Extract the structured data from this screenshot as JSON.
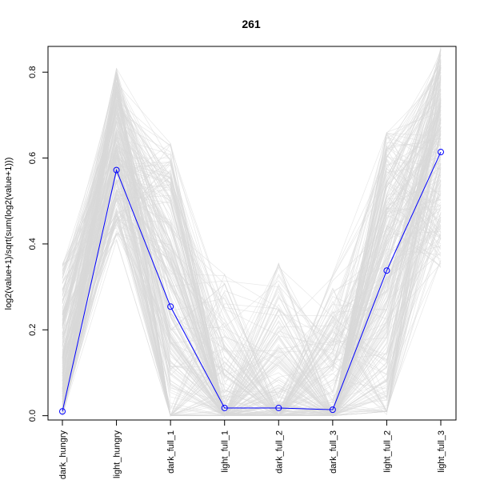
{
  "chart_data": {
    "type": "line",
    "title": "261",
    "xlabel": "",
    "ylabel": "log2(value+1)/sqrt(sum(log2(value+1)))",
    "categories": [
      "dark_hungry",
      "light_hungry",
      "dark_full_1",
      "light_full_1",
      "dark_full_2",
      "dark_full_3",
      "light_full_2",
      "light_full_3"
    ],
    "ylim": [
      -0.01,
      0.86
    ],
    "yticks": [
      0.0,
      0.2,
      0.4,
      0.6,
      0.8
    ],
    "ytick_labels": [
      "0.0",
      "0.2",
      "0.4",
      "0.6",
      "0.8"
    ],
    "grid": false,
    "series": [
      {
        "color": "#0000ff",
        "marker": "open-circle",
        "values": [
          0.01,
          0.572,
          0.254,
          0.018,
          0.018,
          0.014,
          0.338,
          0.614
        ]
      }
    ],
    "background_lines": {
      "color": "#d9d9d9",
      "description_range_low": [
        0.0,
        0.4,
        0.0,
        0.0,
        0.0,
        0.0,
        0.0,
        0.34
      ],
      "description_range_high": [
        0.36,
        0.81,
        0.64,
        0.33,
        0.36,
        0.33,
        0.66,
        0.86
      ]
    }
  }
}
